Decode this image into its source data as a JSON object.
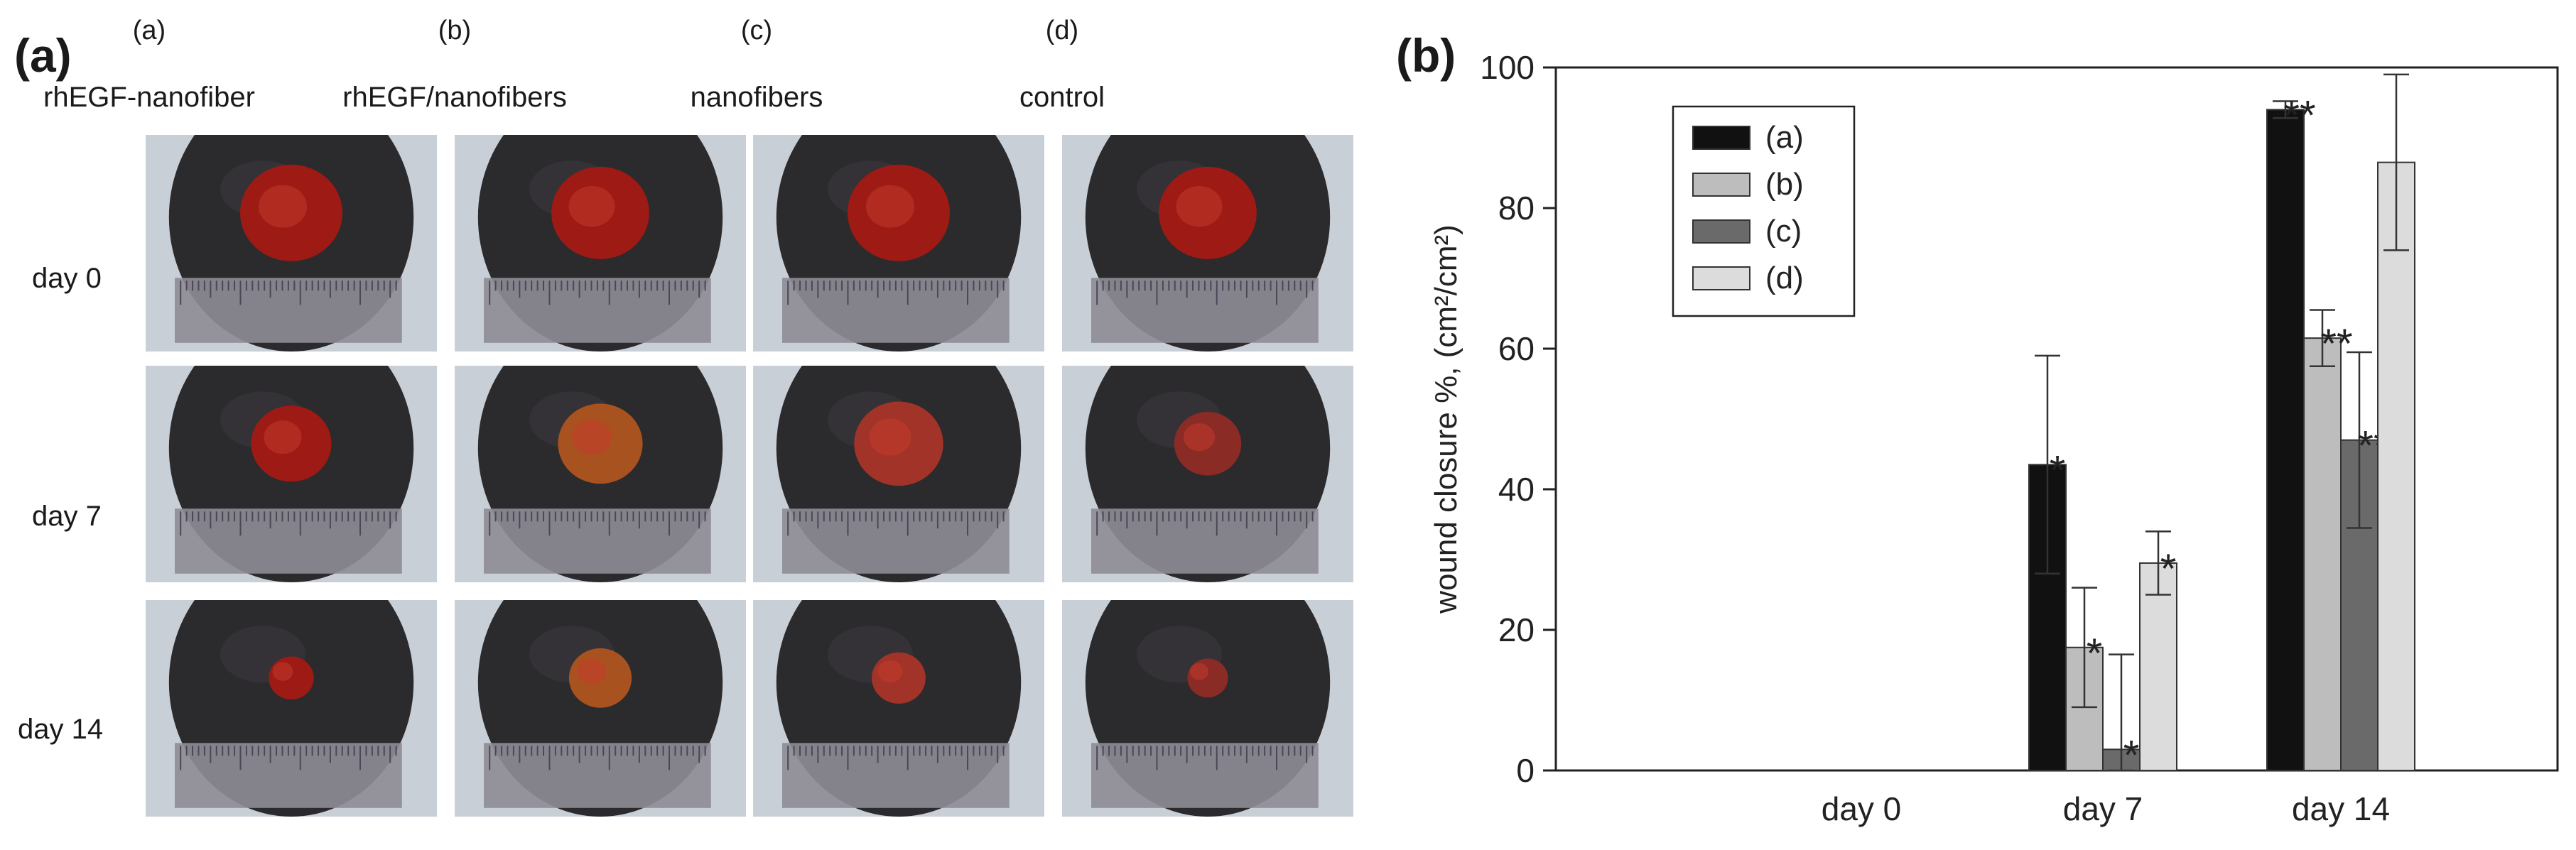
{
  "panel_a": {
    "letter": "(a)",
    "columns": [
      {
        "letter": "(a)",
        "name": "rhEGF-nanofiber"
      },
      {
        "letter": "(b)",
        "name": "rhEGF/nanofibers"
      },
      {
        "letter": "(c)",
        "name": "nanofibers"
      },
      {
        "letter": "(d)",
        "name": "control"
      }
    ],
    "rows": [
      "day 0",
      "day 7",
      "day 14"
    ]
  },
  "panel_b": {
    "letter": "(b)"
  },
  "colors": {
    "series_a": "#111111",
    "series_b": "#bdbdbd",
    "series_c": "#6a6a6a",
    "series_d": "#dcdcdc",
    "wound": "#9e1a14",
    "fur": "#2b2a2d",
    "ruler": "#8e8c96",
    "background_cloth": "#c9cfd6"
  },
  "chart_data": {
    "type": "bar",
    "categories": [
      "day 0",
      "day 7",
      "day 14"
    ],
    "ylabel": "wound closure %, (cm²/cm²)",
    "ylim": [
      0,
      100
    ],
    "yticks": [
      0,
      20,
      40,
      60,
      80,
      100
    ],
    "grid": false,
    "legend_position": "top-left",
    "series": [
      {
        "name": "(a)",
        "values": [
          0,
          43.5,
          94
        ],
        "errors": [
          0,
          15.5,
          1.2
        ],
        "annotations": [
          "",
          "*",
          "**"
        ]
      },
      {
        "name": "(b)",
        "values": [
          0,
          17.5,
          61.5
        ],
        "errors": [
          0,
          8.5,
          4
        ],
        "annotations": [
          "",
          "*",
          "**"
        ]
      },
      {
        "name": "(c)",
        "values": [
          0,
          3,
          47
        ],
        "errors": [
          0,
          13.5,
          12.5
        ],
        "annotations": [
          "",
          "*",
          "**"
        ]
      },
      {
        "name": "(d)",
        "values": [
          0,
          29.5,
          86.5
        ],
        "errors": [
          0,
          4.5,
          12.5
        ],
        "annotations": [
          "",
          "*",
          ""
        ]
      }
    ]
  }
}
